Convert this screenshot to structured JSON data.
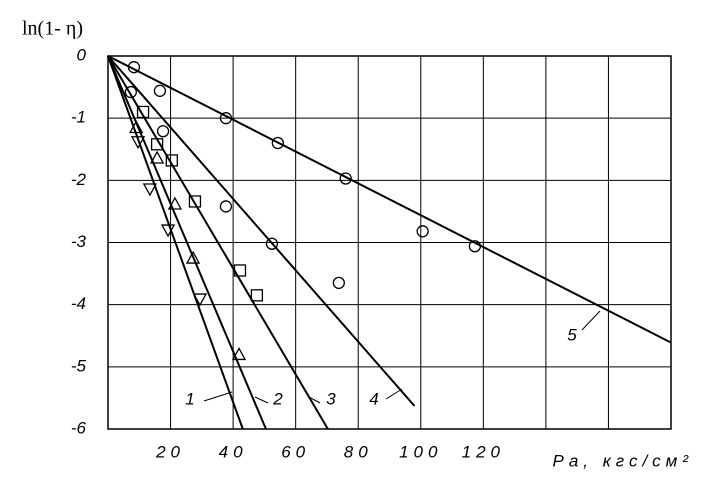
{
  "chart_data": {
    "type": "scatter",
    "y_label": "ln(1- η)",
    "x_label": "Pa, кгс/см²",
    "xlim": [
      0,
      180
    ],
    "ylim": [
      -6,
      0
    ],
    "xticks": [
      20,
      40,
      60,
      80,
      100,
      120
    ],
    "xgrid": [
      20,
      40,
      60,
      80,
      100,
      120,
      140,
      160,
      180
    ],
    "yticks": [
      0,
      -1,
      -2,
      -3,
      -4,
      -5,
      -6
    ],
    "grid": true,
    "color": "#000000",
    "series": [
      {
        "name": "1",
        "marker": "triangle-down",
        "x": [
          9.6,
          13.4,
          19.2,
          29.4
        ],
        "y": [
          -1.37,
          -2.13,
          -2.79,
          -3.9
        ],
        "line_x": [
          0,
          43.1
        ],
        "line_y": [
          0,
          -6
        ]
      },
      {
        "name": "2",
        "marker": "triangle-up",
        "x": [
          9,
          15.7,
          21.4,
          27.2,
          41.9
        ],
        "y": [
          -1.16,
          -1.65,
          -2.39,
          -3.26,
          -4.81
        ],
        "line_x": [
          0,
          50.5
        ],
        "line_y": [
          0,
          -6
        ]
      },
      {
        "name": "3",
        "marker": "square",
        "x": [
          11.2,
          15.7,
          20.4,
          27.8,
          42.2,
          47.6
        ],
        "y": [
          -0.9,
          -1.42,
          -1.68,
          -2.34,
          -3.45,
          -3.85
        ],
        "line_x": [
          0,
          70.3
        ],
        "line_y": [
          0,
          -6
        ]
      },
      {
        "name": "4",
        "marker": "circle",
        "x": [
          7.3,
          17.6,
          37.7,
          52.4,
          73.8
        ],
        "y": [
          -0.58,
          -1.21,
          -2.42,
          -3.02,
          -3.65
        ],
        "line_x": [
          0,
          98
        ],
        "line_y": [
          0,
          -5.63
        ]
      },
      {
        "name": "5",
        "marker": "circle",
        "x": [
          8.3,
          16.6,
          37.7,
          54.3,
          76,
          100.6,
          117.3
        ],
        "y": [
          -0.18,
          -0.56,
          -1,
          -1.4,
          -1.97,
          -2.82,
          -3.06
        ],
        "line_x": [
          0,
          180
        ],
        "line_y": [
          0,
          -4.61
        ]
      }
    ]
  }
}
